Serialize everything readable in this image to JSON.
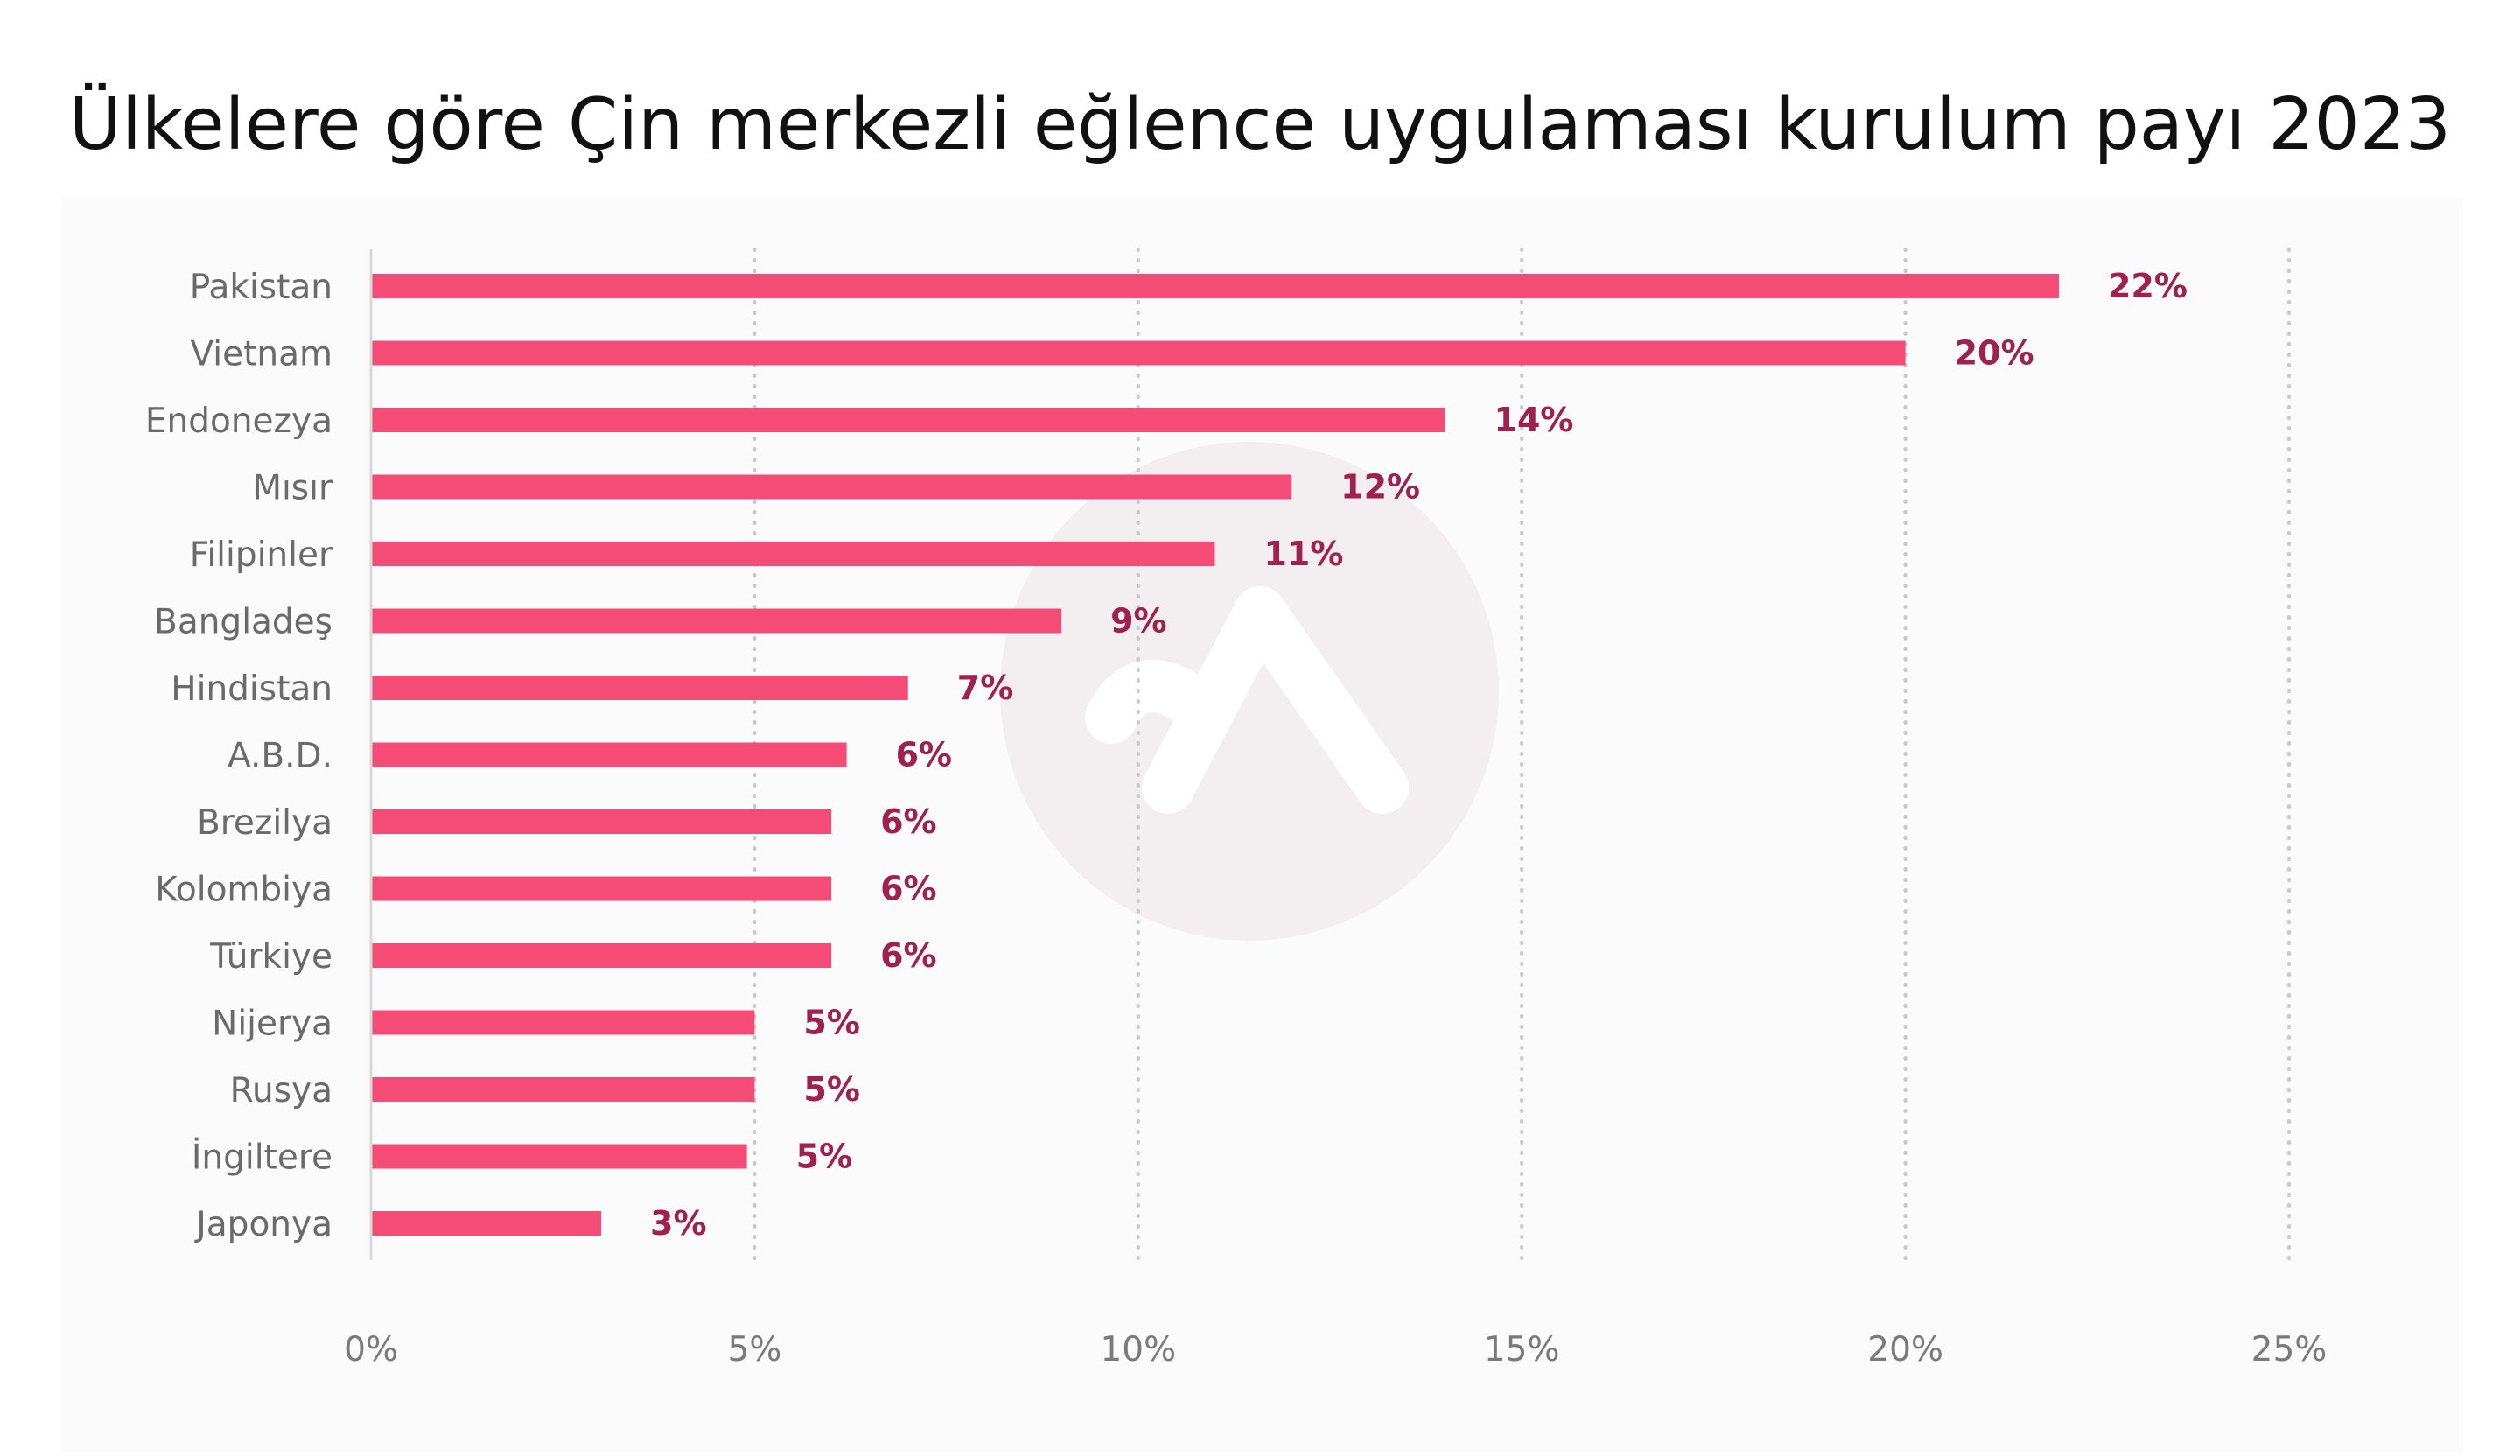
{
  "title": "Ülkelere göre Çin merkezli eğlence uygulaması kurulum payı 2023",
  "colors": {
    "bar": "#f44b77",
    "data_label": "#a0204e",
    "axis_text": "#6a6a6a",
    "grid": "#c9c9c9",
    "background": "#fcfbfc",
    "watermark": "#f3eef0"
  },
  "watermark_icon": "app-logo-watermark-icon",
  "chart_data": {
    "type": "bar",
    "orientation": "horizontal",
    "categories": [
      "Pakistan",
      "Vietnam",
      "Endonezya",
      "Mısır",
      "Filipinler",
      "Bangladeş",
      "Hindistan",
      "A.B.D.",
      "Brezilya",
      "Kolombiya",
      "Türkiye",
      "Nijerya",
      "Rusya",
      "İngiltere",
      "Japonya"
    ],
    "values": [
      22,
      20,
      14,
      12,
      11,
      9,
      7,
      6.2,
      6,
      6,
      6,
      5,
      5,
      4.9,
      3
    ],
    "data_labels": [
      "22%",
      "20%",
      "14%",
      "12%",
      "11%",
      "9%",
      "7%",
      "6%",
      "6%",
      "6%",
      "6%",
      "5%",
      "5%",
      "5%",
      "3%"
    ],
    "xlim": [
      0,
      25
    ],
    "x_ticks": [
      0,
      5,
      10,
      15,
      20,
      25
    ],
    "x_tick_labels": [
      "0%",
      "5%",
      "10%",
      "15%",
      "20%",
      "25%"
    ],
    "xlabel": "",
    "ylabel": "",
    "grid": "vertical-dotted"
  }
}
